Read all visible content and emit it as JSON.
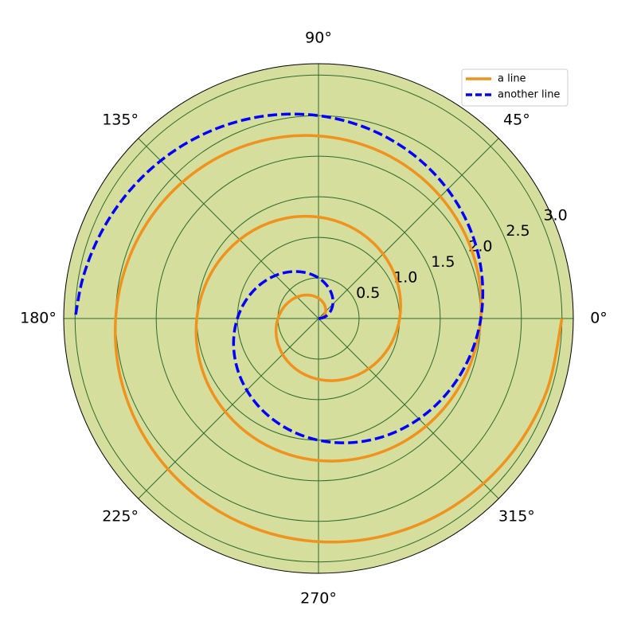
{
  "chart_data": {
    "type": "polar-line",
    "thetaticks": [
      {
        "value": 0,
        "label": "0°"
      },
      {
        "value": 45,
        "label": "45°"
      },
      {
        "value": 90,
        "label": "90°"
      },
      {
        "value": 135,
        "label": "135°"
      },
      {
        "value": 180,
        "label": "180°"
      },
      {
        "value": 225,
        "label": "225°"
      },
      {
        "value": 270,
        "label": "270°"
      },
      {
        "value": 315,
        "label": "315°"
      }
    ],
    "ylim": [
      0,
      3.14
    ],
    "yticks": [
      0.5,
      {
        "value": 1,
        "label": "1.0"
      },
      1.5,
      {
        "value": 2,
        "label": "2.0"
      },
      2.5,
      {
        "value": 3,
        "label": "3.0"
      }
    ],
    "rlabel_angle": 22.5,
    "grid": true,
    "background": "#d5de9c",
    "grid_color": "#2e6b2e",
    "legend": "upper right",
    "series": [
      {
        "name": "a line",
        "color": "#f0921e",
        "dashed": false,
        "theta": [
          0,
          18,
          36,
          54,
          72,
          90,
          108,
          126,
          144,
          162,
          180,
          198,
          216,
          234,
          252,
          270,
          288,
          306,
          324,
          342,
          360,
          378,
          396,
          414,
          432,
          450,
          468,
          486,
          504,
          522,
          540,
          558,
          576,
          594,
          612,
          630,
          648,
          666,
          684,
          702,
          720,
          738,
          756,
          774,
          792,
          810,
          828,
          846,
          864,
          882,
          900,
          918,
          936,
          954,
          972,
          990,
          1008,
          1026,
          1044,
          1062,
          1080
        ],
        "values": [
          0,
          0.05,
          0.1,
          0.15,
          0.2,
          0.25,
          0.3,
          0.35,
          0.4,
          0.45,
          0.5,
          0.55,
          0.6,
          0.65,
          0.7,
          0.75,
          0.8,
          0.85,
          0.9,
          0.95,
          1,
          1.05,
          1.1,
          1.15,
          1.2,
          1.25,
          1.3,
          1.35,
          1.4,
          1.45,
          1.5,
          1.55,
          1.6,
          1.65,
          1.7,
          1.75,
          1.8,
          1.85,
          1.9,
          1.95,
          2,
          2.05,
          2.1,
          2.15,
          2.2,
          2.25,
          2.3,
          2.35,
          2.4,
          2.45,
          2.5,
          2.55,
          2.6,
          2.65,
          2.7,
          2.75,
          2.8,
          2.85,
          2.9,
          2.95,
          3
        ]
      },
      {
        "name": "another line",
        "color": "#0000ff",
        "dashed": true,
        "theta": [
          0,
          9,
          18,
          27,
          36,
          45,
          54,
          63,
          72,
          81,
          90,
          99,
          108,
          117,
          126,
          135,
          144,
          153,
          162,
          171,
          180,
          189,
          198,
          207,
          216,
          225,
          234,
          243,
          252,
          261,
          270,
          279,
          288,
          297,
          306,
          315,
          324,
          333,
          342,
          351,
          360,
          369,
          378,
          387,
          396,
          405,
          414,
          423,
          432,
          441,
          450,
          459,
          468,
          477,
          486,
          495,
          504,
          513,
          522,
          531,
          540
        ],
        "values": [
          0,
          0.05,
          0.1,
          0.15,
          0.2,
          0.25,
          0.3,
          0.35,
          0.4,
          0.45,
          0.5,
          0.55,
          0.6,
          0.65,
          0.7,
          0.75,
          0.8,
          0.85,
          0.9,
          0.95,
          1,
          1.05,
          1.1,
          1.15,
          1.2,
          1.25,
          1.3,
          1.35,
          1.4,
          1.45,
          1.5,
          1.55,
          1.6,
          1.65,
          1.7,
          1.75,
          1.8,
          1.85,
          1.9,
          1.95,
          2,
          2.05,
          2.1,
          2.15,
          2.2,
          2.25,
          2.3,
          2.35,
          2.4,
          2.45,
          2.5,
          2.55,
          2.6,
          2.65,
          2.7,
          2.75,
          2.8,
          2.85,
          2.9,
          2.95,
          3
        ]
      }
    ]
  }
}
